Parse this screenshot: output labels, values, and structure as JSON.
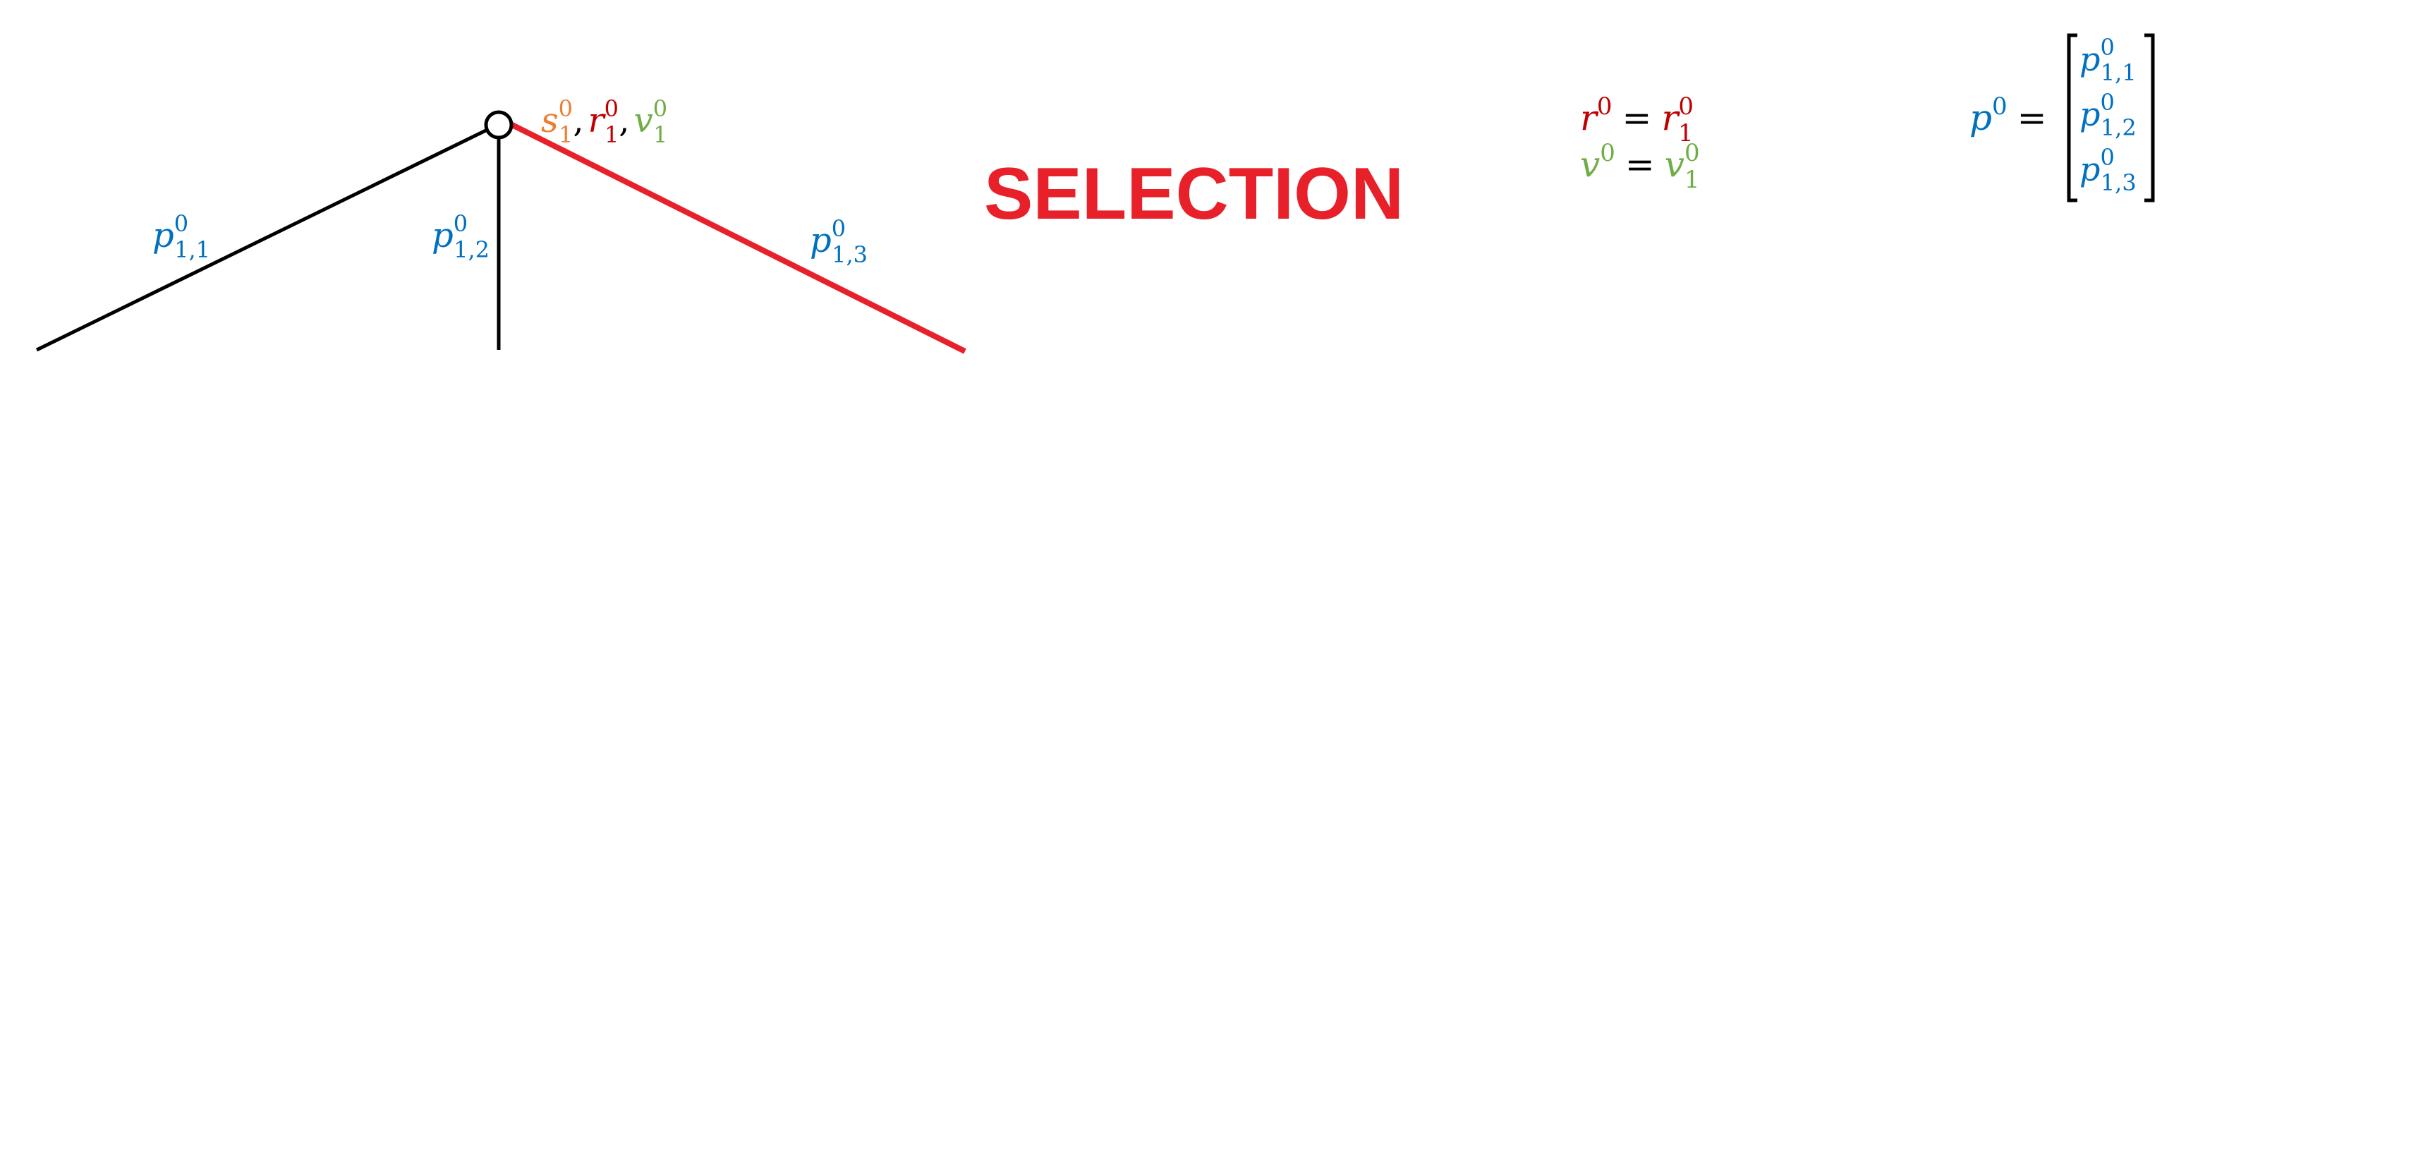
{
  "title": "SELECTION",
  "colors": {
    "title": "#e8202a",
    "edge_default": "#000000",
    "edge_selected": "#e8202a",
    "state": "#ed7d31",
    "reward": "#c00000",
    "value": "#70ad47",
    "prob": "#0070c0",
    "text": "#000000"
  },
  "tree": {
    "root_node": {
      "state": "s",
      "reward": "r",
      "value": "v",
      "index": "1",
      "step": "0",
      "sep": ","
    },
    "edges": [
      {
        "id": "edge-1",
        "label_base": "p",
        "label_sub": "1,1",
        "label_sup": "0",
        "selected": false
      },
      {
        "id": "edge-2",
        "label_base": "p",
        "label_sub": "1,2",
        "label_sup": "0",
        "selected": false
      },
      {
        "id": "edge-3",
        "label_base": "p",
        "label_sub": "1,3",
        "label_sup": "0",
        "selected": true
      }
    ]
  },
  "equations": {
    "reward": {
      "lhs": "r",
      "lhs_sup": "0",
      "eq": "=",
      "rhs": "r",
      "rhs_sub": "1",
      "rhs_sup": "0"
    },
    "value": {
      "lhs": "v",
      "lhs_sup": "0",
      "eq": "=",
      "rhs": "v",
      "rhs_sub": "1",
      "rhs_sup": "0"
    },
    "policy": {
      "lhs": "p",
      "lhs_sup": "0",
      "eq": "=",
      "entries": [
        {
          "base": "p",
          "sub": "1,1",
          "sup": "0"
        },
        {
          "base": "p",
          "sub": "1,2",
          "sup": "0"
        },
        {
          "base": "p",
          "sub": "1,3",
          "sup": "0"
        }
      ]
    }
  }
}
